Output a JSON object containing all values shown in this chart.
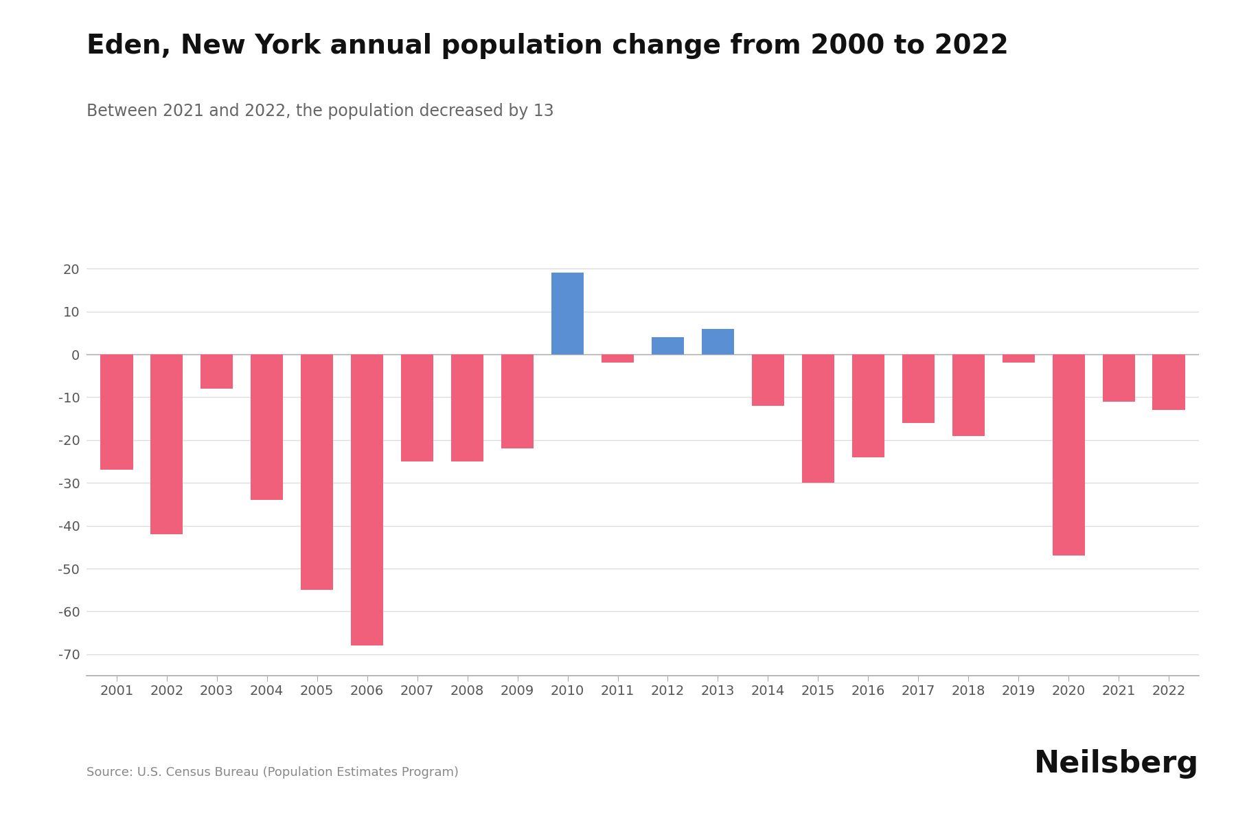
{
  "title": "Eden, New York annual population change from 2000 to 2022",
  "subtitle": "Between 2021 and 2022, the population decreased by 13",
  "source": "Source: U.S. Census Bureau (Population Estimates Program)",
  "branding": "Neilsberg",
  "years": [
    2001,
    2002,
    2003,
    2004,
    2005,
    2006,
    2007,
    2008,
    2009,
    2010,
    2011,
    2012,
    2013,
    2014,
    2015,
    2016,
    2017,
    2018,
    2019,
    2020,
    2021,
    2022
  ],
  "values": [
    -27,
    -42,
    -8,
    -34,
    -55,
    -68,
    -25,
    -25,
    -22,
    19,
    -2,
    4,
    6,
    -12,
    -30,
    -24,
    -16,
    -19,
    -2,
    -47,
    -11,
    -13
  ],
  "bar_color_positive": "#5B8FD4",
  "bar_color_negative": "#F0607A",
  "background_color": "#ffffff",
  "title_fontsize": 28,
  "subtitle_fontsize": 17,
  "source_fontsize": 13,
  "branding_fontsize": 32,
  "tick_fontsize": 14,
  "ylim": [
    -75,
    25
  ],
  "yticks": [
    -70,
    -60,
    -50,
    -40,
    -30,
    -20,
    -10,
    0,
    10,
    20
  ],
  "grid_color": "#dddddd",
  "axis_color": "#aaaaaa",
  "tick_color": "#555555"
}
